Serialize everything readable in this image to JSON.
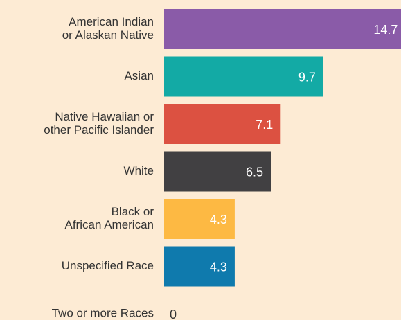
{
  "chart_data": {
    "type": "bar",
    "orientation": "horizontal",
    "categories": [
      [
        "American Indian",
        "or Alaskan Native"
      ],
      [
        "Asian"
      ],
      [
        "Native Hawaiian or",
        "other Pacific Islander"
      ],
      [
        "White"
      ],
      [
        "Black or",
        "African American"
      ],
      [
        "Unspecified Race"
      ],
      [
        "Two or more Races"
      ]
    ],
    "values": [
      14.7,
      9.7,
      7.1,
      6.5,
      4.3,
      4.3,
      0
    ],
    "colors": [
      "#8a5ba8",
      "#13aaa5",
      "#dc5141",
      "#414042",
      "#fdb943",
      "#0f7aad",
      "#999999"
    ]
  }
}
